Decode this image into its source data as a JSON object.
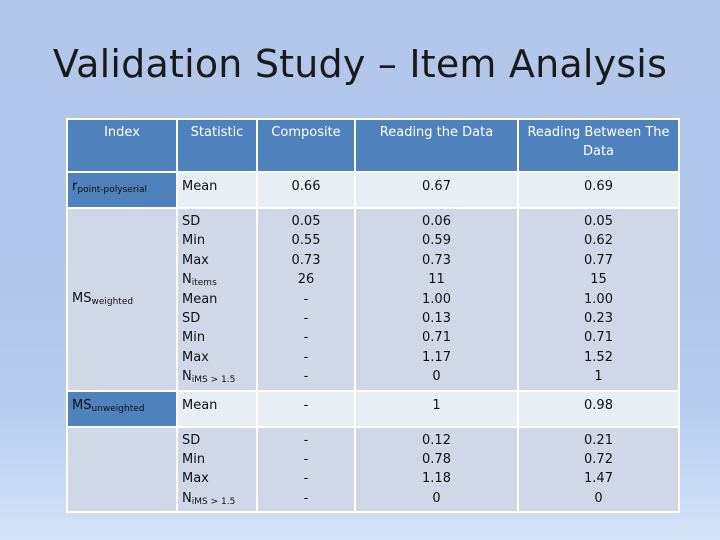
{
  "title": "Validation Study – Item Analysis",
  "columns": [
    "Index",
    "Statistic",
    "Composite",
    "Reading the Data",
    "Reading Between The Data"
  ],
  "rows": [
    {
      "index_main": "r",
      "index_sub": "point-polyserial",
      "stats": [
        {
          "main": "Mean",
          "sub": ""
        }
      ],
      "composite": [
        "0.66"
      ],
      "reading": [
        "0.67"
      ],
      "between": [
        "0.69"
      ]
    },
    {
      "index_main": "MS",
      "index_sub": "weighted",
      "stats": [
        {
          "main": "SD",
          "sub": ""
        },
        {
          "main": "Min",
          "sub": ""
        },
        {
          "main": "Max",
          "sub": ""
        },
        {
          "main": "N",
          "sub": "items"
        },
        {
          "main": "Mean",
          "sub": ""
        },
        {
          "main": "SD",
          "sub": ""
        },
        {
          "main": "Min",
          "sub": ""
        },
        {
          "main": "Max",
          "sub": ""
        },
        {
          "main": "N",
          "sub": "iMS > 1.5"
        }
      ],
      "composite": [
        "0.05",
        "0.55",
        "0.73",
        "26",
        "-",
        "-",
        "-",
        "-",
        "-"
      ],
      "reading": [
        "0.06",
        "0.59",
        "0.73",
        "11",
        "1.00",
        "0.13",
        "0.71",
        "1.17",
        "0"
      ],
      "between": [
        "0.05",
        "0.62",
        "0.77",
        "15",
        "1.00",
        "0.23",
        "0.71",
        "1.52",
        "1"
      ]
    },
    {
      "index_main": "MS",
      "index_sub": "unweighted",
      "stats": [
        {
          "main": "Mean",
          "sub": ""
        }
      ],
      "composite": [
        "-"
      ],
      "reading": [
        "1"
      ],
      "between": [
        "0.98"
      ]
    },
    {
      "index_main": "",
      "index_sub": "",
      "stats": [
        {
          "main": "SD",
          "sub": ""
        },
        {
          "main": "Min",
          "sub": ""
        },
        {
          "main": "Max",
          "sub": ""
        },
        {
          "main": "N",
          "sub": "iMS > 1.5"
        }
      ],
      "composite": [
        "-",
        "-",
        "-",
        "-"
      ],
      "reading": [
        "0.12",
        "0.78",
        "1.18",
        "0"
      ],
      "between": [
        "0.21",
        "0.72",
        "1.47",
        "0"
      ]
    }
  ]
}
